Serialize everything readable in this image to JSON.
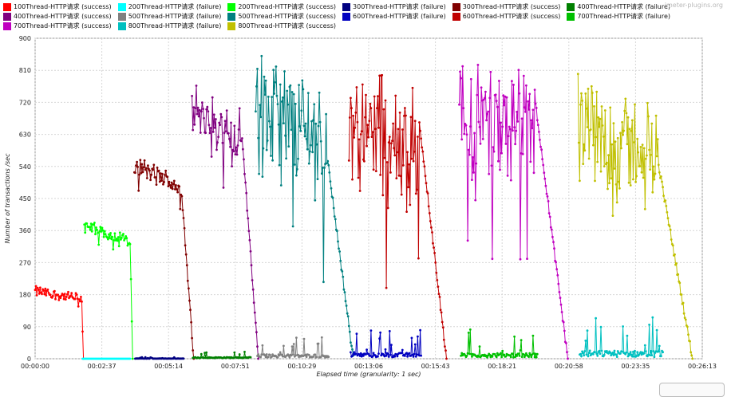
{
  "watermark": "jmeter-plugins.org",
  "chart_data": {
    "type": "line",
    "title": "",
    "xlabel": "Elapsed time (granularity: 1 sec)",
    "ylabel": "Number of transactions /sec",
    "xlim_sec": [
      0,
      1573
    ],
    "ylim": [
      0,
      900
    ],
    "yticks": [
      0,
      90,
      180,
      270,
      360,
      450,
      540,
      630,
      720,
      810,
      900
    ],
    "xtick_labels": [
      "00:00:00",
      "00:02:37",
      "00:05:14",
      "00:07:51",
      "00:10:29",
      "00:13:06",
      "00:15:43",
      "00:18:21",
      "00:20:58",
      "00:23:35",
      "00:26:13"
    ],
    "grid": true,
    "legend_position": "top",
    "series": [
      {
        "name": "100Thread-HTTP请求 (success)",
        "color": "#ff0000",
        "start": 0,
        "end": 55,
        "plateau": 190,
        "amp": 18,
        "tail": 2
      },
      {
        "name": "200Thread-HTTP请求 (failure)",
        "color": "#00ffff",
        "start": 56,
        "end": 112,
        "plateau": 0,
        "amp": 0,
        "tail": 2
      },
      {
        "name": "200Thread-HTTP请求 (success)",
        "color": "#00ff00",
        "start": 58,
        "end": 112,
        "plateau": 375,
        "amp": 22,
        "tail": 3
      },
      {
        "name": "300Thread-HTTP请求 (failure)",
        "color": "#000080",
        "start": 118,
        "end": 175,
        "plateau": 1,
        "amp": 2,
        "tail": 2
      },
      {
        "name": "300Thread-HTTP请求 (success)",
        "color": "#800000",
        "start": 117,
        "end": 173,
        "plateau": 545,
        "amp": 35,
        "tail": 14
      },
      {
        "name": "400Thread-HTTP请求 (failure)",
        "color": "#008000",
        "start": 186,
        "end": 254,
        "plateau": 8,
        "amp": 10,
        "tail": 3
      },
      {
        "name": "400Thread-HTTP请求 (success)",
        "color": "#800080",
        "start": 185,
        "end": 245,
        "plateau": 700,
        "amp": 90,
        "tail": 18
      },
      {
        "name": "500Thread-HTTP请求 (failure)",
        "color": "#808080",
        "start": 262,
        "end": 346,
        "plateau": 18,
        "amp": 30,
        "tail": 3
      },
      {
        "name": "500Thread-HTTP请求 (success)",
        "color": "#008080",
        "start": 260,
        "end": 345,
        "plateau": 700,
        "amp": 220,
        "tail": 30
      },
      {
        "name": "600Thread-HTTP请求 (failure)",
        "color": "#0000c0",
        "start": 372,
        "end": 455,
        "plateau": 22,
        "amp": 40,
        "tail": 3
      },
      {
        "name": "600Thread-HTTP请求 (success)",
        "color": "#c00000",
        "start": 370,
        "end": 453,
        "plateau": 660,
        "amp": 240,
        "tail": 32
      },
      {
        "name": "700Thread-HTTP请求 (failure)",
        "color": "#00c000",
        "start": 502,
        "end": 592,
        "plateau": 20,
        "amp": 40,
        "tail": 3
      },
      {
        "name": "700Thread-HTTP请求 (success)",
        "color": "#c000c0",
        "start": 500,
        "end": 590,
        "plateau": 700,
        "amp": 200,
        "tail": 38
      },
      {
        "name": "800Thread-HTTP请求 (failure)",
        "color": "#00c0c0",
        "start": 642,
        "end": 740,
        "plateau": 25,
        "amp": 60,
        "tail": 3
      },
      {
        "name": "800Thread-HTTP请求 (success)",
        "color": "#c0c000",
        "start": 640,
        "end": 735,
        "plateau": 650,
        "amp": 170,
        "tail": 40
      }
    ]
  }
}
